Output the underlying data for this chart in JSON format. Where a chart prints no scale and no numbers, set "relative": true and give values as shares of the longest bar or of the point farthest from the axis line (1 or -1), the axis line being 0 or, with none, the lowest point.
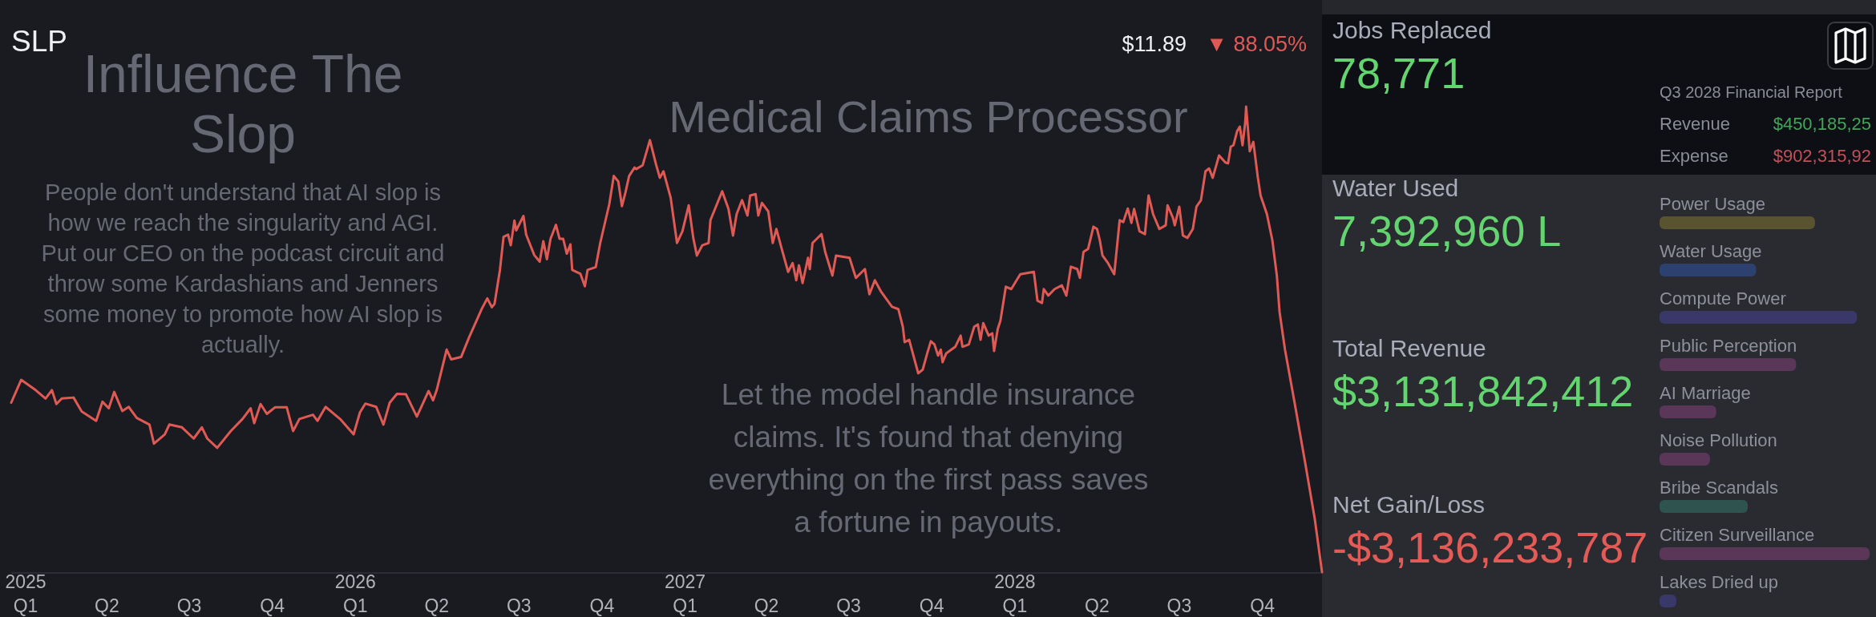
{
  "chart_data": [
    {
      "type": "line",
      "title": "SLP",
      "color": "#e05a55",
      "relative": true,
      "annotations": [
        "$11.89",
        "▼ 88.05%"
      ],
      "xlim": [
        "2024-12-16",
        "2028-12-06"
      ],
      "xticks": [
        {
          "value": "2025-01-01",
          "label": "2025\nQ1"
        },
        {
          "value": "2025-04-01",
          "label": "Q2"
        },
        {
          "value": "2025-07-01",
          "label": "Q3"
        },
        {
          "value": "2025-10-01",
          "label": "Q4"
        },
        {
          "value": "2026-01-01",
          "label": "2026\nQ1"
        },
        {
          "value": "2026-04-01",
          "label": "Q2"
        },
        {
          "value": "2026-07-01",
          "label": "Q3"
        },
        {
          "value": "2026-10-01",
          "label": "Q4"
        },
        {
          "value": "2027-01-01",
          "label": "2027\nQ1"
        },
        {
          "value": "2027-04-01",
          "label": "Q2"
        },
        {
          "value": "2027-07-01",
          "label": "Q3"
        },
        {
          "value": "2027-10-01",
          "label": "Q4"
        },
        {
          "value": "2028-01-01",
          "label": "2028\nQ1"
        },
        {
          "value": "2028-04-01",
          "label": "Q2"
        },
        {
          "value": "2028-07-01",
          "label": "Q3"
        },
        {
          "value": "2028-10-01",
          "label": "Q4"
        }
      ],
      "x": [
        "2024-12-16",
        "2024-12-27",
        "2025-01-12",
        "2025-01-23",
        "2025-01-30",
        "2025-02-04",
        "2025-02-10",
        "2025-02-23",
        "2025-03-04",
        "2025-03-20",
        "2025-03-27",
        "2025-04-03",
        "2025-04-09",
        "2025-04-18",
        "2025-04-25",
        "2025-05-04",
        "2025-05-18",
        "2025-05-23",
        "2025-06-04",
        "2025-06-09",
        "2025-06-23",
        "2025-07-06",
        "2025-07-15",
        "2025-07-21",
        "2025-08-01",
        "2025-08-16",
        "2025-08-29",
        "2025-09-07",
        "2025-09-11",
        "2025-09-18",
        "2025-09-25",
        "2025-10-04",
        "2025-10-17",
        "2025-10-24",
        "2025-10-31",
        "2025-11-15",
        "2025-11-20",
        "2025-11-29",
        "2025-12-15",
        "2025-12-30",
        "2026-01-06",
        "2026-01-12",
        "2026-01-24",
        "2026-02-01",
        "2026-02-08",
        "2026-02-16",
        "2026-02-26",
        "2026-03-10",
        "2026-03-23",
        "2026-03-28",
        "2026-04-01",
        "2026-04-12",
        "2026-04-17",
        "2026-04-28",
        "2026-05-07",
        "2026-05-21",
        "2026-05-27",
        "2026-06-01",
        "2026-06-04",
        "2026-06-10",
        "2026-06-14",
        "2026-06-19",
        "2026-06-22",
        "2026-06-26",
        "2026-06-28",
        "2026-07-06",
        "2026-07-09",
        "2026-07-18",
        "2026-07-24",
        "2026-07-28",
        "2026-08-01",
        "2026-08-05",
        "2026-08-11",
        "2026-08-15",
        "2026-08-19",
        "2026-08-23",
        "2026-08-27",
        "2026-08-29",
        "2026-09-07",
        "2026-09-12",
        "2026-09-15",
        "2026-09-24",
        "2026-09-29",
        "2026-10-09",
        "2026-10-14",
        "2026-10-19",
        "2026-10-23",
        "2026-10-27",
        "2026-10-31",
        "2026-11-06",
        "2026-11-08",
        "2026-11-15",
        "2026-11-23",
        "2026-11-30",
        "2026-12-04",
        "2026-12-08",
        "2026-12-16",
        "2026-12-23",
        "2026-12-29",
        "2027-01-05",
        "2027-01-10",
        "2027-01-14",
        "2027-01-20",
        "2027-01-27",
        "2027-01-29",
        "2027-02-11",
        "2027-02-18",
        "2027-02-23",
        "2027-02-27",
        "2027-03-05",
        "2027-03-11",
        "2027-03-14",
        "2027-03-20",
        "2027-03-23",
        "2027-03-27",
        "2027-04-03",
        "2027-04-08",
        "2027-04-12",
        "2027-04-18",
        "2027-04-25",
        "2027-04-30",
        "2027-05-04",
        "2027-05-07",
        "2027-05-11",
        "2027-05-17",
        "2027-05-19",
        "2027-05-22",
        "2027-06-01",
        "2027-06-05",
        "2027-06-13",
        "2027-06-17",
        "2027-07-02",
        "2027-07-09",
        "2027-07-19",
        "2027-07-24",
        "2027-07-30",
        "2027-08-06",
        "2027-08-18",
        "2027-08-25",
        "2027-08-30",
        "2027-09-01",
        "2027-09-06",
        "2027-09-16",
        "2027-09-21",
        "2027-09-26",
        "2027-09-30",
        "2027-10-04",
        "2027-10-08",
        "2027-10-11",
        "2027-10-13",
        "2027-10-17",
        "2027-10-27",
        "2027-11-02",
        "2027-11-04",
        "2027-11-11",
        "2027-11-17",
        "2027-11-21",
        "2027-11-24",
        "2027-11-27",
        "2027-12-03",
        "2027-12-07",
        "2027-12-09",
        "2027-12-13",
        "2027-12-16",
        "2027-12-22",
        "2027-12-28",
        "2028-01-07",
        "2028-01-22",
        "2028-01-26",
        "2028-01-31",
        "2028-02-02",
        "2028-02-07",
        "2028-02-14",
        "2028-02-22",
        "2028-02-27",
        "2028-03-03",
        "2028-03-10",
        "2028-03-13",
        "2028-03-17",
        "2028-03-22",
        "2028-03-28",
        "2028-04-01",
        "2028-04-04",
        "2028-04-07",
        "2028-04-13",
        "2028-04-20",
        "2028-04-26",
        "2028-04-30",
        "2028-05-05",
        "2028-05-09",
        "2028-05-12",
        "2028-05-18",
        "2028-05-24",
        "2028-05-28",
        "2028-06-02",
        "2028-06-09",
        "2028-06-16",
        "2028-06-18",
        "2028-06-24",
        "2028-06-26",
        "2028-07-01",
        "2028-07-05",
        "2028-07-10",
        "2028-07-16",
        "2028-07-20",
        "2028-07-25",
        "2028-07-30",
        "2028-08-03",
        "2028-08-07",
        "2028-08-11",
        "2028-08-14",
        "2028-08-21",
        "2028-08-24",
        "2028-08-27",
        "2028-08-30",
        "2028-09-03",
        "2028-09-06",
        "2028-09-09",
        "2028-09-12",
        "2028-09-13",
        "2028-09-17",
        "2028-09-21",
        "2028-09-26",
        "2028-09-29",
        "2028-10-06",
        "2028-10-12",
        "2028-10-17",
        "2028-10-20",
        "2028-10-26",
        "2028-11-06",
        "2028-11-17",
        "2028-11-28",
        "2028-12-06"
      ],
      "values": [
        0.364,
        0.413,
        0.391,
        0.373,
        0.391,
        0.361,
        0.373,
        0.375,
        0.345,
        0.325,
        0.366,
        0.352,
        0.387,
        0.346,
        0.355,
        0.331,
        0.317,
        0.276,
        0.296,
        0.317,
        0.311,
        0.287,
        0.311,
        0.287,
        0.267,
        0.303,
        0.329,
        0.352,
        0.32,
        0.361,
        0.34,
        0.354,
        0.354,
        0.303,
        0.329,
        0.338,
        0.325,
        0.355,
        0.329,
        0.296,
        0.343,
        0.362,
        0.355,
        0.317,
        0.364,
        0.383,
        0.382,
        0.334,
        0.389,
        0.369,
        0.391,
        0.478,
        0.457,
        0.462,
        0.505,
        0.566,
        0.588,
        0.569,
        0.576,
        0.649,
        0.72,
        0.725,
        0.702,
        0.755,
        0.734,
        0.765,
        0.725,
        0.681,
        0.667,
        0.711,
        0.672,
        0.716,
        0.746,
        0.716,
        0.716,
        0.684,
        0.704,
        0.649,
        0.641,
        0.614,
        0.649,
        0.655,
        0.707,
        0.79,
        0.851,
        0.839,
        0.786,
        0.816,
        0.851,
        0.869,
        0.866,
        0.874,
        0.928,
        0.874,
        0.847,
        0.861,
        0.804,
        0.707,
        0.732,
        0.788,
        0.718,
        0.68,
        0.702,
        0.707,
        0.756,
        0.818,
        0.78,
        0.723,
        0.769,
        0.799,
        0.766,
        0.809,
        0.812,
        0.766,
        0.793,
        0.775,
        0.707,
        0.737,
        0.694,
        0.645,
        0.664,
        0.627,
        0.659,
        0.621,
        0.675,
        0.651,
        0.707,
        0.726,
        0.688,
        0.637,
        0.68,
        0.675,
        0.632,
        0.651,
        0.597,
        0.627,
        0.602,
        0.57,
        0.565,
        0.527,
        0.494,
        0.499,
        0.427,
        0.435,
        0.47,
        0.496,
        0.489,
        0.465,
        0.478,
        0.451,
        0.47,
        0.484,
        0.508,
        0.484,
        0.489,
        0.527,
        0.532,
        0.499,
        0.535,
        0.508,
        0.513,
        0.475,
        0.522,
        0.54,
        0.613,
        0.608,
        0.64,
        0.645,
        0.583,
        0.578,
        0.608,
        0.594,
        0.608,
        0.616,
        0.594,
        0.656,
        0.651,
        0.632,
        0.688,
        0.694,
        0.742,
        0.737,
        0.713,
        0.68,
        0.664,
        0.64,
        0.756,
        0.752,
        0.781,
        0.75,
        0.78,
        0.732,
        0.726,
        0.809,
        0.769,
        0.737,
        0.745,
        0.788,
        0.761,
        0.745,
        0.785,
        0.723,
        0.718,
        0.737,
        0.785,
        0.799,
        0.861,
        0.867,
        0.847,
        0.874,
        0.895,
        0.88,
        0.878,
        0.914,
        0.917,
        0.947,
        0.957,
        0.917,
        0.966,
        1,
        0.904,
        0.924,
        0.847,
        0.809,
        0.769,
        0.713,
        0.637,
        0.559,
        0.478,
        0.36,
        0.239,
        0.114,
        0
      ]
    },
    {
      "type": "other",
      "title": "Influence The Slop",
      "annotations": [
        "People don't understand that AI slop is how we reach the singularity and AGI. Put our CEO on the podcast circuit and throw some Kardashians and Jenners some money to promote how AI slop is actually."
      ]
    },
    {
      "type": "other",
      "title": "Medical Claims Processor",
      "annotations": [
        "Let the model handle insurance claims. It's found that denying everything on the first pass saves a fortune in payouts."
      ]
    },
    {
      "type": "other",
      "title": "Q3 2028 Financial Report",
      "annotations": [
        "Revenue",
        "$450,185,25",
        "Expense",
        "$902,315,92"
      ],
      "colors": [
        "#8a8d98",
        "#44a35b",
        "#8a8d98",
        "#c0505a"
      ]
    },
    {
      "type": "bar",
      "orientation": "horizontal",
      "relative": true,
      "categories": [
        "Power Usage",
        "Water Usage",
        "Compute Power",
        "Public Perception",
        "AI Marriage",
        "Noise Pollution",
        "Bribe Scandals",
        "Citizen Surveillance",
        "Lakes Dried up"
      ],
      "values": [
        0.74,
        0.46,
        0.94,
        0.65,
        0.27,
        0.24,
        0.42,
        1,
        0.08
      ],
      "colors": [
        "#5a5330",
        "#2d4170",
        "#3a3868",
        "#5a3658",
        "#5a3658",
        "#5a3658",
        "#2f5450",
        "#5a3658",
        "#3a3868"
      ]
    },
    {
      "type": "other",
      "annotations": [
        "Jobs Replaced",
        "78,771",
        "Water Used",
        "7,392,960 L",
        "Total Revenue",
        "$3,131,842,412",
        "Net Gain/Loss",
        "-$3,136,233,787"
      ],
      "colors": [
        "#a8abb8",
        "#63d46f",
        "#a8abb8",
        "#63d46f",
        "#a8abb8",
        "#63d46f",
        "#a8abb8",
        "#e35b57"
      ]
    }
  ]
}
